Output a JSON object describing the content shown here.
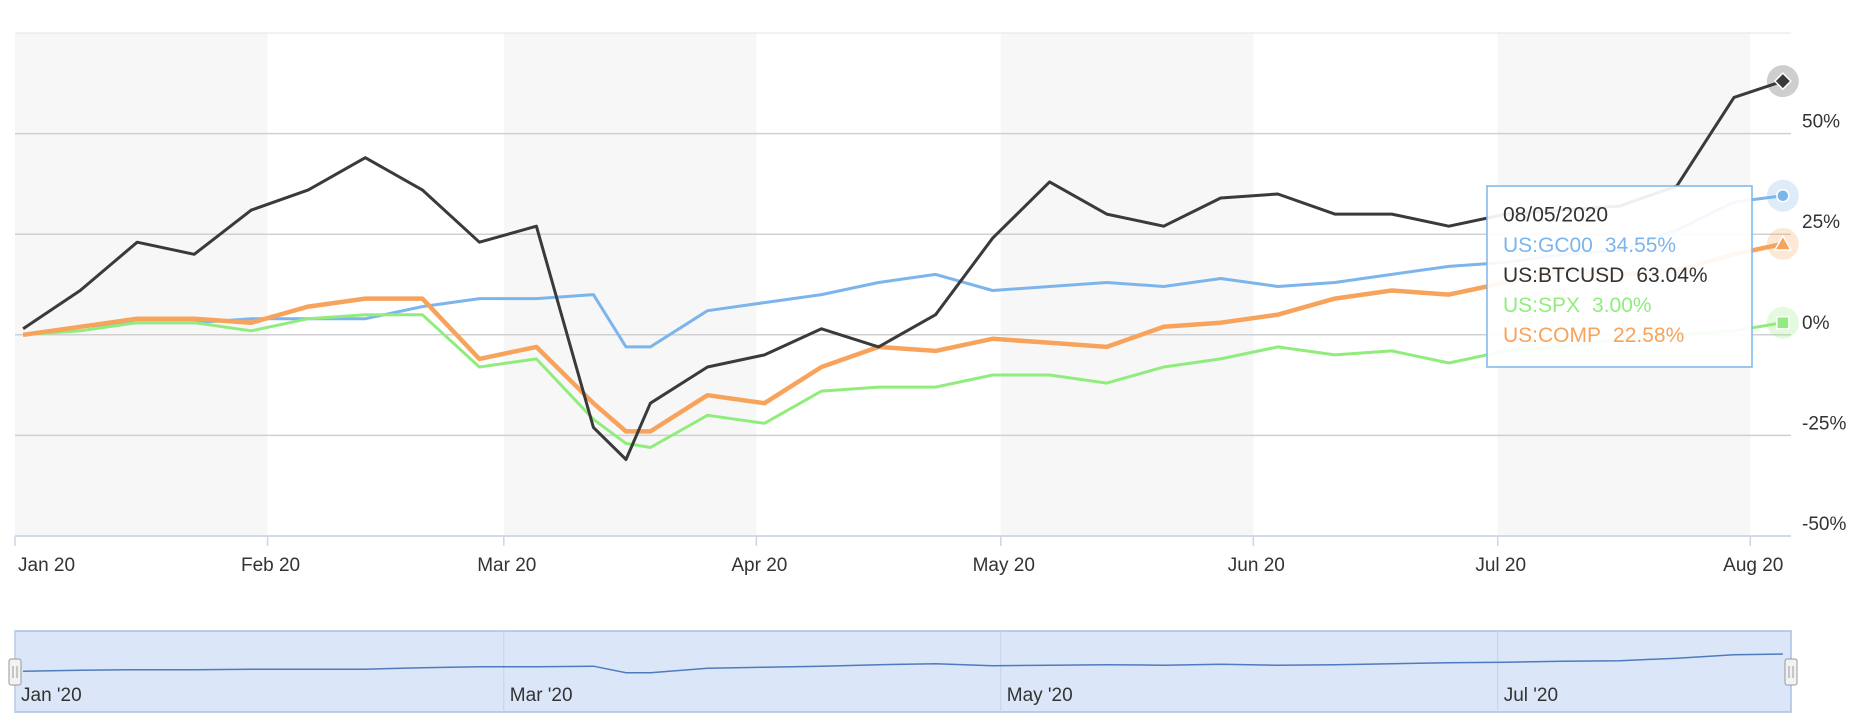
{
  "chart_data": {
    "type": "line",
    "x": [
      "01/02/2020",
      "01/09/2020",
      "01/16/2020",
      "01/23/2020",
      "01/30/2020",
      "02/06/2020",
      "02/13/2020",
      "02/20/2020",
      "02/27/2020",
      "03/05/2020",
      "03/12/2020",
      "03/16/2020",
      "03/19/2020",
      "03/26/2020",
      "04/02/2020",
      "04/09/2020",
      "04/16/2020",
      "04/23/2020",
      "04/30/2020",
      "05/07/2020",
      "05/14/2020",
      "05/21/2020",
      "05/28/2020",
      "06/04/2020",
      "06/11/2020",
      "06/18/2020",
      "06/25/2020",
      "07/02/2020",
      "07/09/2020",
      "07/16/2020",
      "07/23/2020",
      "07/30/2020",
      "08/05/2020"
    ],
    "series": [
      {
        "name": "US:GC00",
        "color": "#7cb5ec",
        "marker": "circle",
        "values": [
          0,
          2,
          3,
          3,
          4,
          4,
          4,
          7,
          9,
          9,
          10,
          -3,
          -3,
          6,
          8,
          10,
          13,
          15,
          11,
          12,
          13,
          12,
          14,
          12,
          13,
          15,
          17,
          18,
          20,
          21,
          26,
          33,
          34.55
        ]
      },
      {
        "name": "US:BTCUSD",
        "color": "#3a3a3a",
        "marker": "diamond",
        "values": [
          1.5,
          11,
          23,
          20,
          31,
          36,
          44,
          36,
          23,
          27,
          -23,
          -31,
          -17,
          -8,
          -5,
          1.5,
          -3,
          5,
          24,
          38,
          30,
          27,
          34,
          35,
          30,
          30,
          27,
          30,
          31,
          32,
          37,
          59,
          63.04
        ]
      },
      {
        "name": "US:SPX",
        "color": "#90ed7d",
        "marker": "square",
        "values": [
          0,
          1,
          3,
          3,
          1,
          4,
          5,
          5,
          -8,
          -6,
          -21,
          -27,
          -28,
          -20,
          -22,
          -14,
          -13,
          -13,
          -10,
          -10,
          -12,
          -8,
          -6,
          -3,
          -5,
          -4,
          -7,
          -4,
          -3,
          -1,
          0,
          1,
          3.0
        ]
      },
      {
        "name": "US:COMP",
        "color": "#f7a35c",
        "marker": "triangle",
        "values": [
          0,
          2,
          4,
          4,
          3,
          7,
          9,
          9,
          -6,
          -3,
          -17,
          -24,
          -24,
          -15,
          -17,
          -8,
          -3,
          -4,
          -1,
          -2,
          -3,
          2,
          3,
          5,
          9,
          11,
          10,
          13,
          16,
          15,
          16,
          20,
          22.58
        ]
      }
    ],
    "xlim": [
      "01/01/2020",
      "08/06/2020"
    ],
    "xticks": [
      {
        "value": "01/01/2020",
        "label": "Jan 20"
      },
      {
        "value": "02/01/2020",
        "label": "Feb 20"
      },
      {
        "value": "03/01/2020",
        "label": "Mar 20"
      },
      {
        "value": "04/01/2020",
        "label": "Apr 20"
      },
      {
        "value": "05/01/2020",
        "label": "May 20"
      },
      {
        "value": "06/01/2020",
        "label": "Jun 20"
      },
      {
        "value": "07/01/2020",
        "label": "Jul 20"
      },
      {
        "value": "08/01/2020",
        "label": "Aug 20"
      }
    ],
    "ylim": [
      -50,
      75
    ],
    "yticks": [
      {
        "value": 50,
        "label": "50%"
      },
      {
        "value": 25,
        "label": "25%"
      },
      {
        "value": 0,
        "label": "0%"
      },
      {
        "value": -25,
        "label": "-25%"
      },
      {
        "value": -50,
        "label": "-50%"
      }
    ],
    "grid": true,
    "tooltip": {
      "x": "08/05/2020",
      "labels": [
        "34.55%",
        "63.04%",
        "3.00%",
        "22.58%"
      ]
    },
    "navigator_ticks": [
      {
        "value": "01/01/2020",
        "label": "Jan '20"
      },
      {
        "value": "03/01/2020",
        "label": "Mar '20"
      },
      {
        "value": "05/01/2020",
        "label": "May '20"
      },
      {
        "value": "07/01/2020",
        "label": "Jul '20"
      }
    ]
  }
}
